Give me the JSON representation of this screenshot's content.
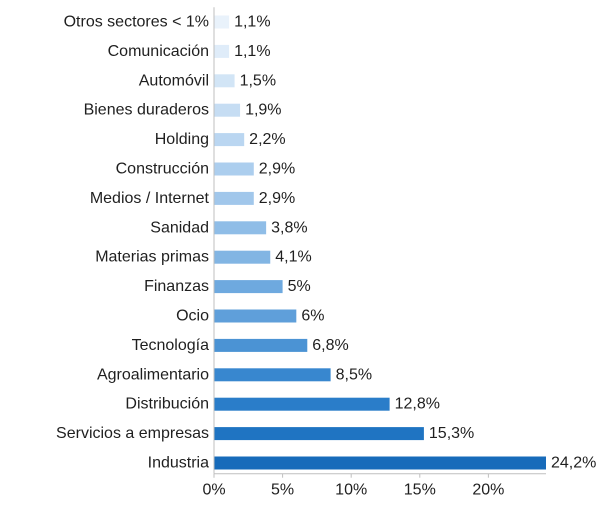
{
  "chart_data": {
    "type": "bar",
    "orientation": "horizontal",
    "categories": [
      "Otros sectores < 1%",
      "Comunicación",
      "Automóvil",
      "Bienes duraderos",
      "Holding",
      "Construcción",
      "Medios / Internet",
      "Sanidad",
      "Materias primas",
      "Finanzas",
      "Ocio",
      "Tecnología",
      "Agroalimentario",
      "Distribución",
      "Servicios a empresas",
      "Industria"
    ],
    "values": [
      1.1,
      1.1,
      1.5,
      1.9,
      2.2,
      2.9,
      2.9,
      3.8,
      4.1,
      5,
      6,
      6.8,
      8.5,
      12.8,
      15.3,
      24.2
    ],
    "value_labels": [
      "1,1%",
      "1,1%",
      "1,5%",
      "1,9%",
      "2,2%",
      "2,9%",
      "2,9%",
      "3,8%",
      "4,1%",
      "5%",
      "6%",
      "6,8%",
      "8,5%",
      "12,8%",
      "15,3%",
      "24,2%"
    ],
    "colors": [
      "#e9f2fb",
      "#dfecf9",
      "#d2e5f6",
      "#c6ddf3",
      "#bad6f1",
      "#acceee",
      "#a1c7eb",
      "#8fbde7",
      "#82b5e3",
      "#6ea9df",
      "#5f9fda",
      "#4b93d4",
      "#3887cf",
      "#2a7dc9",
      "#1f74c2",
      "#176bba"
    ],
    "x_ticks": [
      0,
      5,
      10,
      15,
      20
    ],
    "x_tick_labels": [
      "0%",
      "5%",
      "10%",
      "15%",
      "20%"
    ],
    "xlim": [
      0,
      24.2
    ],
    "title": "",
    "xlabel": "",
    "ylabel": "",
    "grid": false,
    "legend": "none"
  }
}
